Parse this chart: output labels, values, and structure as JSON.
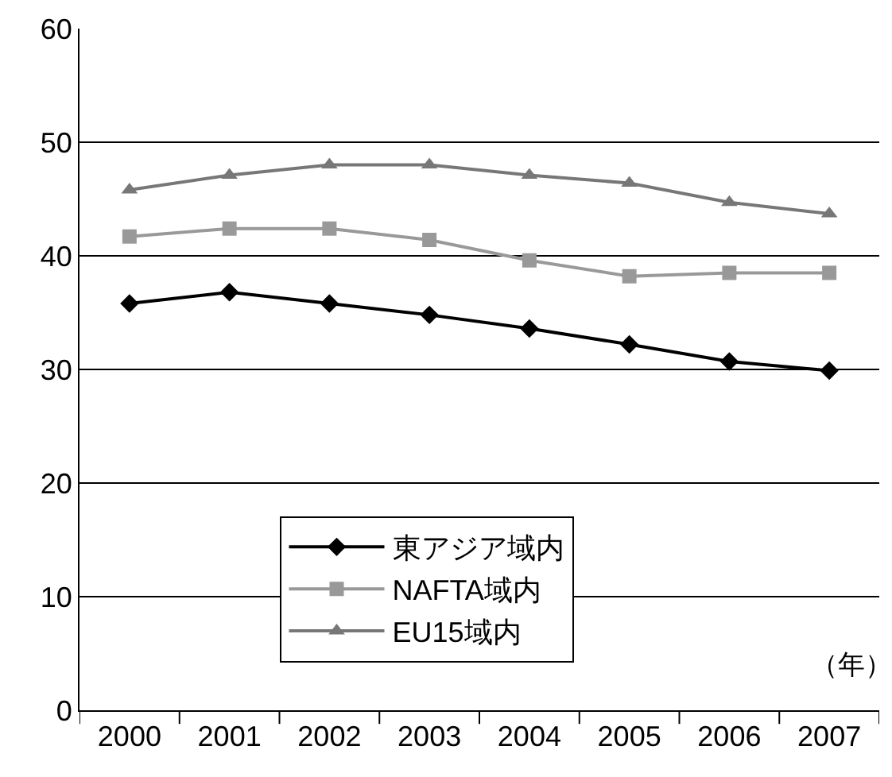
{
  "chart_data": {
    "type": "line",
    "categories": [
      "2000",
      "2001",
      "2002",
      "2003",
      "2004",
      "2005",
      "2006",
      "2007"
    ],
    "series": [
      {
        "name": "東アジア域内",
        "color": "#000000",
        "marker": "diamond",
        "values": [
          35.8,
          36.8,
          35.8,
          34.8,
          33.6,
          32.2,
          30.7,
          29.9
        ]
      },
      {
        "name": "NAFTA域内",
        "color": "#999999",
        "marker": "square",
        "values": [
          41.7,
          42.4,
          42.4,
          41.4,
          39.6,
          38.2,
          38.5,
          38.5
        ]
      },
      {
        "name": "EU15域内",
        "color": "#777777",
        "marker": "triangle",
        "values": [
          45.8,
          47.1,
          48.0,
          48.0,
          47.1,
          46.4,
          44.7,
          43.7
        ]
      }
    ],
    "ylim": [
      0,
      60
    ],
    "yticks": [
      0,
      10,
      20,
      30,
      40,
      50,
      60
    ],
    "grid": "y",
    "legend": "bottom left",
    "line_style": "solid",
    "annotations": [
      "（年）"
    ]
  }
}
